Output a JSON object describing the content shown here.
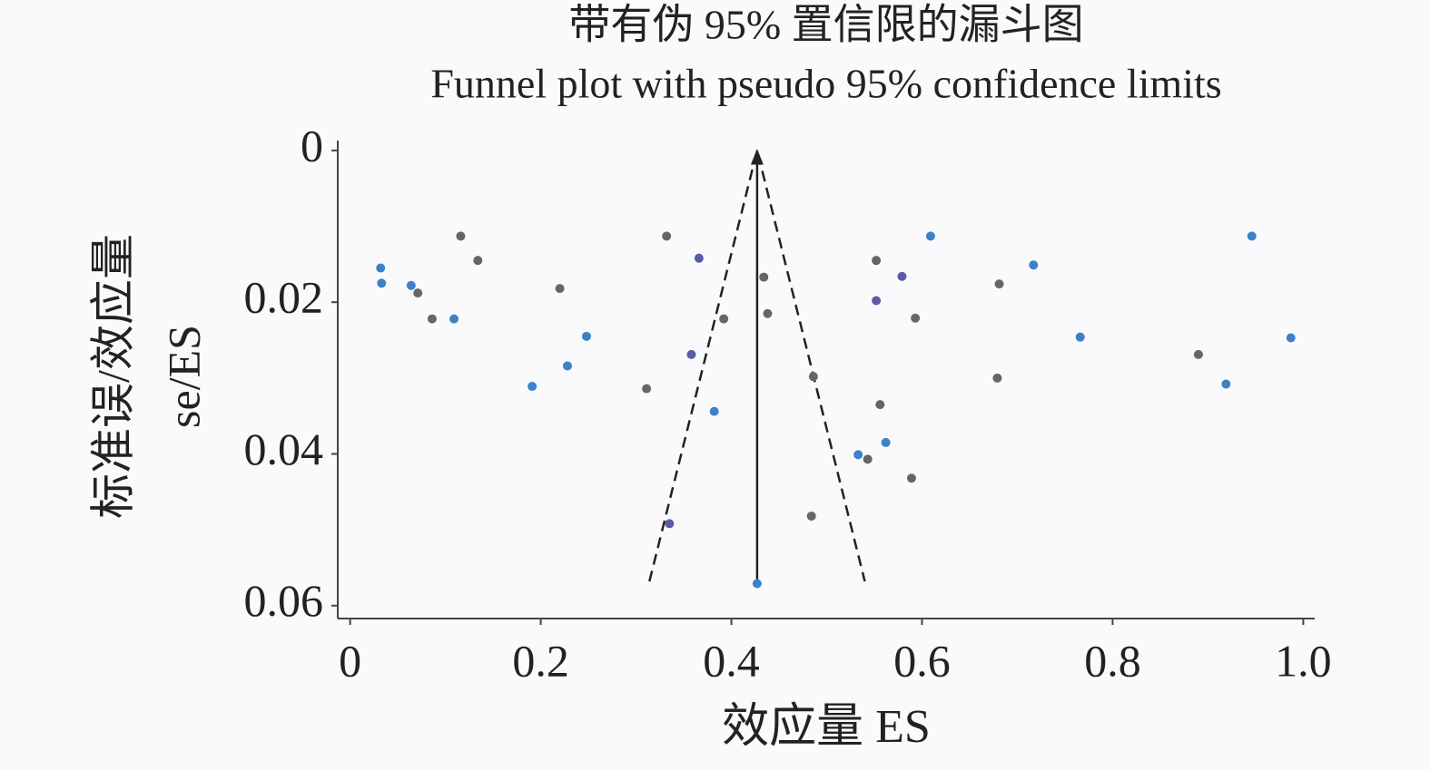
{
  "chart_data": {
    "type": "scatter",
    "title": "带有伪 95% 置信限的漏斗图",
    "subtitle": "Funnel plot with pseudo 95% confidence limits",
    "x_label": "效应量 ES",
    "y_label": [
      "标准误/效应量",
      "se/ES"
    ],
    "xlim": [
      -0.013,
      1.012
    ],
    "ylim": [
      -0.0013,
      0.0617
    ],
    "y_inverted": true,
    "xticks": [
      0,
      0.2,
      0.4,
      0.6,
      0.8,
      {
        "value": 1,
        "label": "1.0"
      }
    ],
    "yticks": [
      0,
      0.02,
      0.04,
      0.06
    ],
    "series": [
      {
        "color": "#3b82c8",
        "x": [
          0.032,
          0.033,
          0.064,
          0.109,
          0.248,
          0.228,
          0.191,
          0.382,
          0.609,
          0.717,
          0.766,
          0.946,
          0.987,
          0.919,
          0.533,
          0.562,
          0.427
        ],
        "values": [
          0.0155,
          0.0175,
          0.0178,
          0.0222,
          0.0245,
          0.0284,
          0.0311,
          0.0344,
          0.0113,
          0.0151,
          0.0246,
          0.0113,
          0.0247,
          0.0308,
          0.0401,
          0.0385,
          0.0571
        ]
      },
      {
        "color": "#666666",
        "x": [
          0.116,
          0.134,
          0.086,
          0.071,
          0.22,
          0.332,
          0.311,
          0.434,
          0.438,
          0.392,
          0.486,
          0.484,
          0.552,
          0.556,
          0.543,
          0.593,
          0.589,
          0.681,
          0.679,
          0.89
        ],
        "values": [
          0.0113,
          0.0145,
          0.0222,
          0.0188,
          0.0182,
          0.0113,
          0.0314,
          0.0167,
          0.0215,
          0.0222,
          0.0298,
          0.0482,
          0.0145,
          0.0335,
          0.0407,
          0.0221,
          0.0432,
          0.0176,
          0.03,
          0.0269
        ]
      },
      {
        "color": "#5a5aa8",
        "x": [
          0.366,
          0.358,
          0.552,
          0.579,
          0.335
        ],
        "values": [
          0.0142,
          0.0269,
          0.0198,
          0.0166,
          0.0492
        ]
      }
    ],
    "lines": [
      {
        "color": "#222222",
        "dashed": true,
        "x": [
          0.314,
          0.427,
          0.54
        ],
        "values": [
          0.0568,
          0,
          0.0568
        ]
      },
      {
        "color": "#222222",
        "arrow": true,
        "x": [
          0.427,
          0.427
        ],
        "values": [
          0.0571,
          0
        ]
      }
    ]
  }
}
